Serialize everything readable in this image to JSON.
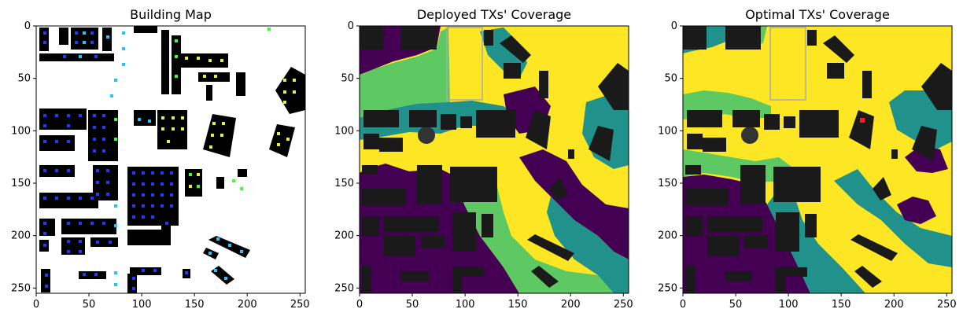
{
  "chart_data": [
    {
      "type": "heatmap",
      "title": "Building Map",
      "xlabel": "",
      "ylabel": "",
      "xlim": [
        0,
        255
      ],
      "ylim": [
        255,
        0
      ],
      "x_ticks": [
        "0",
        "50",
        "100",
        "150",
        "200",
        "250"
      ],
      "y_ticks": [
        "0",
        "50",
        "100",
        "150",
        "200",
        "250"
      ],
      "colors": {
        "background": "#ffffff",
        "building": "#000000",
        "tx_blue": "#1e3cff",
        "tx_cyan": "#1ec8ff",
        "tx_green": "#3cff3c",
        "tx_yellow": "#e6f03c"
      }
    },
    {
      "type": "heatmap",
      "title": "Deployed TXs' Coverage",
      "xlabel": "",
      "ylabel": "",
      "xlim": [
        0,
        255
      ],
      "ylim": [
        255,
        0
      ],
      "x_ticks": [
        "0",
        "50",
        "100",
        "150",
        "200",
        "250"
      ],
      "y_ticks": [
        "0",
        "50",
        "100",
        "150",
        "200",
        "250"
      ],
      "colors": {
        "high": "#fde725",
        "mid_high": "#5ec962",
        "mid": "#21918c",
        "low": "#440154",
        "building": "#1a1a1a"
      }
    },
    {
      "type": "heatmap",
      "title": "Optimal TXs' Coverage",
      "xlabel": "",
      "ylabel": "",
      "xlim": [
        0,
        255
      ],
      "ylim": [
        255,
        0
      ],
      "x_ticks": [
        "0",
        "50",
        "100",
        "150",
        "200",
        "250"
      ],
      "y_ticks": [
        "0",
        "50",
        "100",
        "150",
        "200",
        "250"
      ],
      "tx_marker": {
        "x": 170,
        "y": 90,
        "color": "#ff1a1a"
      },
      "colors": {
        "high": "#fde725",
        "mid_high": "#5ec962",
        "mid": "#21918c",
        "low": "#440154",
        "building": "#1a1a1a"
      }
    }
  ]
}
